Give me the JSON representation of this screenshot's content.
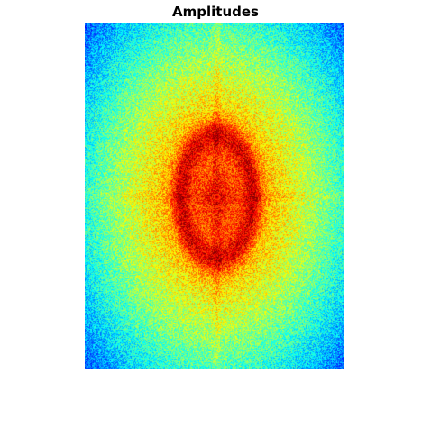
{
  "chart_data": {
    "type": "heatmap",
    "title": "Amplitudes",
    "xlabel": "",
    "ylabel": "",
    "axes_visible": false,
    "grid": false,
    "colormap": "jet",
    "colors": {
      "low": "#0033ff",
      "mid_low": "#00d0ff",
      "mid": "#80ff80",
      "mid_high": "#ffff00",
      "peak": "#ff0000"
    },
    "description_values": {
      "center_peak": 1.0,
      "ring_level": 0.7,
      "edge_level": 0.25
    }
  }
}
